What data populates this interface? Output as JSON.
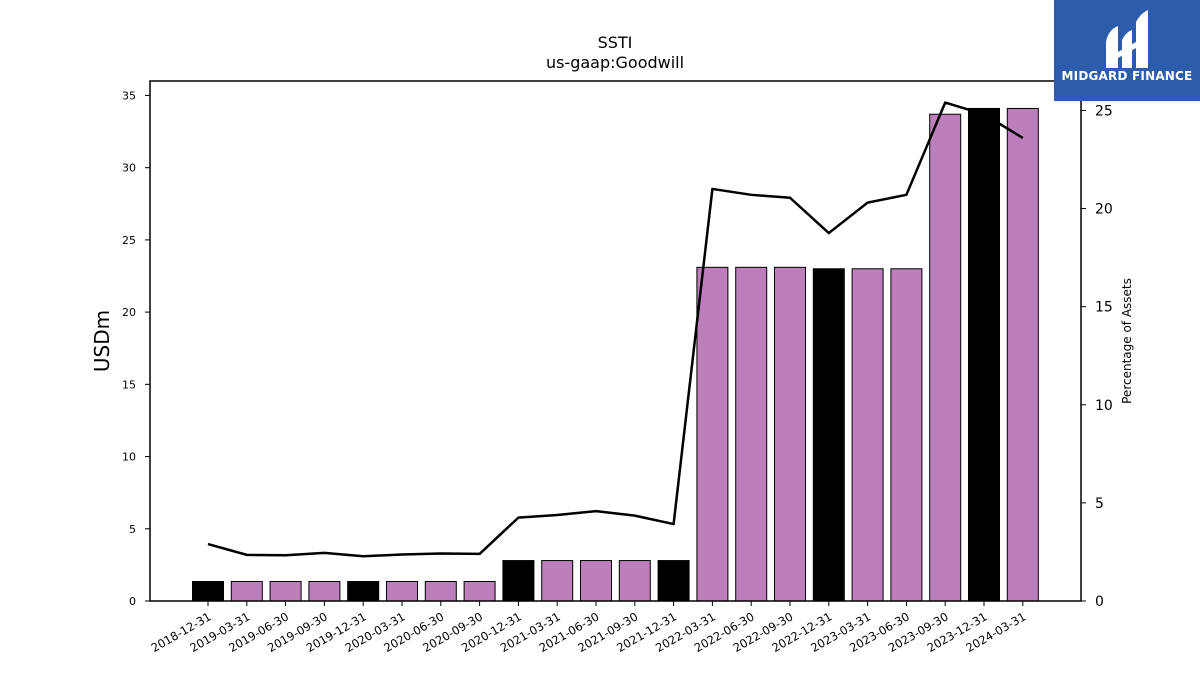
{
  "logo": {
    "text": "MIDGARD FINANCE",
    "icon": "midgard-logo-icon",
    "background": "#2d5cad"
  },
  "chart_data": {
    "type": "bar",
    "title": "SSTI",
    "subtitle": "us-gaap:Goodwill",
    "ylabel": "USDm",
    "y2label": "Percentage of Assets",
    "ylim": [
      0,
      36
    ],
    "y2lim": [
      0,
      26.5
    ],
    "yticks": [
      "0",
      "5",
      "10",
      "15",
      "20",
      "25",
      "30",
      "35"
    ],
    "y2ticks": [
      "0",
      "5",
      "10",
      "15",
      "20",
      "25"
    ],
    "categories": [
      "2018-12-31",
      "2019-03-31",
      "2019-06-30",
      "2019-09-30",
      "2019-12-31",
      "2020-03-31",
      "2020-06-30",
      "2020-09-30",
      "2020-12-31",
      "2021-03-31",
      "2021-06-30",
      "2021-09-30",
      "2021-12-31",
      "2022-03-31",
      "2022-06-30",
      "2022-09-30",
      "2022-12-31",
      "2023-03-31",
      "2023-06-30",
      "2023-09-30",
      "2023-12-31",
      "2024-03-31"
    ],
    "bar_values": [
      1.35,
      1.35,
      1.35,
      1.35,
      1.35,
      1.35,
      1.35,
      1.35,
      2.8,
      2.8,
      2.8,
      2.8,
      2.8,
      23.1,
      23.1,
      23.1,
      23.0,
      23.0,
      23.0,
      33.7,
      34.1,
      34.1
    ],
    "bar_colors": [
      "#000000",
      "#bc7fbc",
      "#bc7fbc",
      "#bc7fbc",
      "#000000",
      "#bc7fbc",
      "#bc7fbc",
      "#bc7fbc",
      "#000000",
      "#bc7fbc",
      "#bc7fbc",
      "#bc7fbc",
      "#000000",
      "#bc7fbc",
      "#bc7fbc",
      "#bc7fbc",
      "#000000",
      "#bc7fbc",
      "#bc7fbc",
      "#bc7fbc",
      "#000000",
      "#bc7fbc"
    ],
    "line_values": [
      2.9,
      2.35,
      2.33,
      2.45,
      2.28,
      2.37,
      2.42,
      2.4,
      4.25,
      4.38,
      4.58,
      4.35,
      3.92,
      21.0,
      20.7,
      20.55,
      18.75,
      20.3,
      20.7,
      25.4,
      24.8,
      23.6
    ],
    "line_color": "#000000"
  }
}
